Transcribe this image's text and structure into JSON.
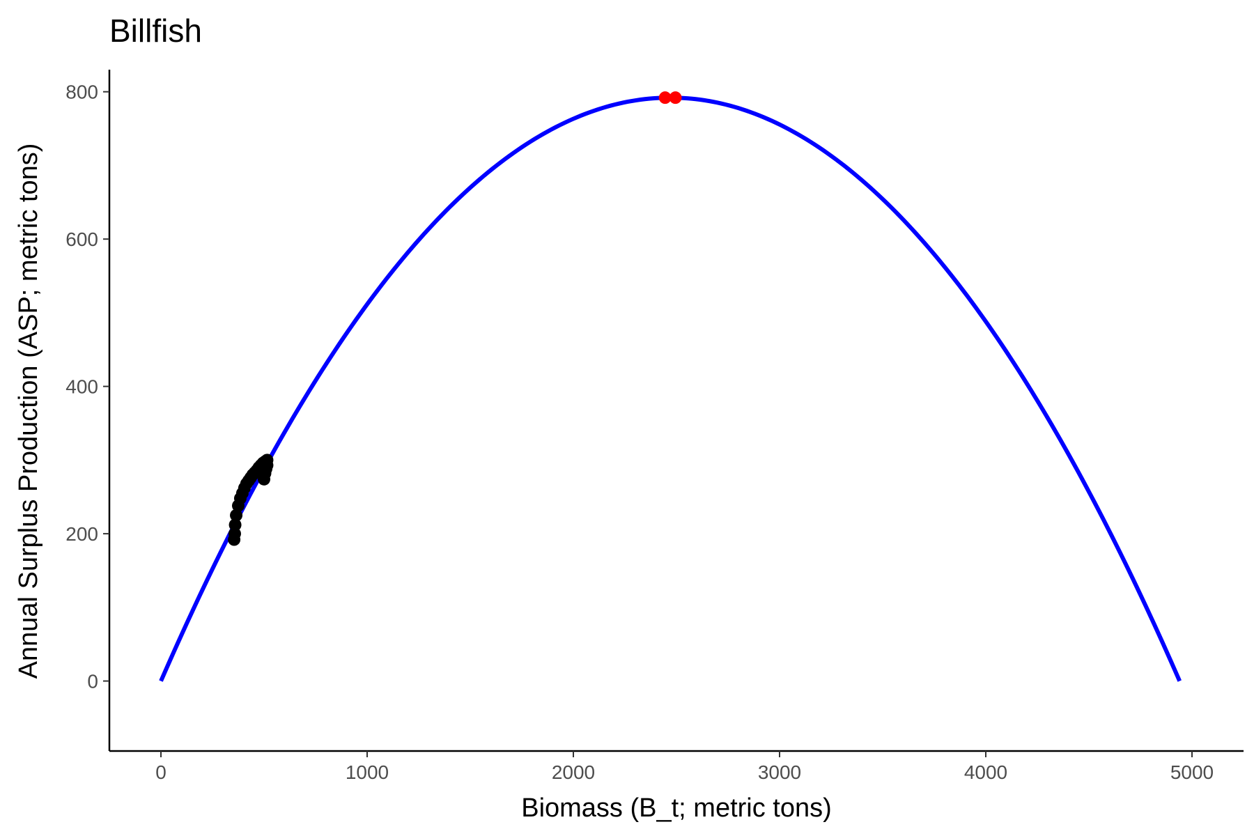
{
  "chart_data": {
    "type": "scatter",
    "title": "Billfish",
    "xlabel": "Biomass (B_t; metric tons)",
    "ylabel": "Annual Surplus Production (ASP; metric tons)",
    "xlim": [
      -250,
      5250
    ],
    "ylim": [
      -95,
      830
    ],
    "x_ticks": [
      0,
      1000,
      2000,
      3000,
      4000,
      5000
    ],
    "y_ticks": [
      0,
      200,
      400,
      600,
      800
    ],
    "grid": false,
    "legend": "none",
    "curve": {
      "form": "logistic surplus production",
      "K": 4940,
      "MSY": 792,
      "color": "#0000ff"
    },
    "series": [
      {
        "color": "#000000",
        "points": [
          [
            355,
            192
          ],
          [
            358,
            200
          ],
          [
            360,
            212
          ],
          [
            365,
            225
          ],
          [
            375,
            238
          ],
          [
            385,
            248
          ],
          [
            395,
            255
          ],
          [
            405,
            262
          ],
          [
            415,
            268
          ],
          [
            425,
            272
          ],
          [
            435,
            276
          ],
          [
            445,
            280
          ],
          [
            455,
            283
          ],
          [
            465,
            286
          ],
          [
            475,
            290
          ],
          [
            485,
            293
          ],
          [
            495,
            296
          ],
          [
            505,
            298
          ],
          [
            515,
            300
          ],
          [
            500,
            274
          ],
          [
            505,
            282
          ],
          [
            510,
            288
          ],
          [
            515,
            293
          ],
          [
            510,
            296
          ]
        ]
      },
      {
        "color": "#ff0000",
        "points": [
          [
            2445,
            792
          ],
          [
            2495,
            792
          ]
        ]
      }
    ]
  }
}
